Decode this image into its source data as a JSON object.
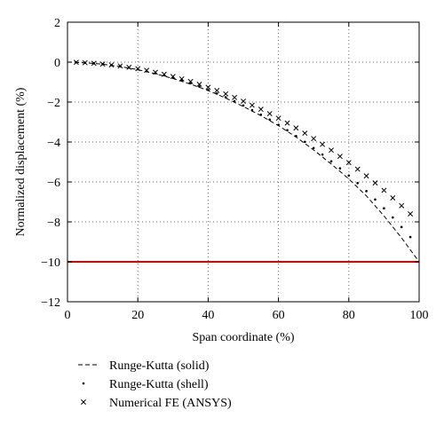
{
  "chart_data": {
    "type": "line",
    "xlabel": "Span coordinate (%)",
    "ylabel": "Normalized displacement (%)",
    "xlim": [
      0,
      100
    ],
    "ylim": [
      -12,
      2
    ],
    "xticks": [
      0,
      20,
      40,
      60,
      80,
      100
    ],
    "yticks": [
      2,
      0,
      -2,
      -4,
      -6,
      -8,
      -10,
      -12
    ],
    "xtick_labels": [
      "0",
      "20",
      "40",
      "60",
      "80",
      "100"
    ],
    "ytick_labels": [
      "2",
      "0",
      "−2",
      "−4",
      "−6",
      "−8",
      "−10",
      "−12"
    ],
    "grid": true,
    "legend_position": "below-left",
    "reference_line": {
      "y": -10,
      "color": "#e00000"
    },
    "series": [
      {
        "name": "Runge-Kutta (solid)",
        "style": "dashed",
        "color": "#000000",
        "x": [
          0,
          5,
          10,
          15,
          20,
          25,
          30,
          35,
          40,
          45,
          50,
          55,
          60,
          65,
          70,
          75,
          80,
          85,
          90,
          95,
          100
        ],
        "y": [
          0,
          -0.03,
          -0.1,
          -0.22,
          -0.38,
          -0.58,
          -0.82,
          -1.1,
          -1.42,
          -1.8,
          -2.22,
          -2.68,
          -3.18,
          -3.75,
          -4.4,
          -5.1,
          -5.85,
          -6.7,
          -7.7,
          -8.8,
          -10.0
        ]
      },
      {
        "name": "Runge-Kutta (shell)",
        "style": "dots",
        "color": "#000000",
        "x": [
          2.5,
          5,
          7.5,
          10,
          12.5,
          15,
          17.5,
          20,
          22.5,
          25,
          27.5,
          30,
          32.5,
          35,
          37.5,
          40,
          42.5,
          45,
          47.5,
          50,
          52.5,
          55,
          57.5,
          60,
          62.5,
          65,
          67.5,
          70,
          72.5,
          75,
          77.5,
          80,
          82.5,
          85,
          87.5,
          90,
          92.5,
          95,
          97.5
        ],
        "y": [
          -0.01,
          -0.03,
          -0.06,
          -0.1,
          -0.15,
          -0.21,
          -0.28,
          -0.36,
          -0.45,
          -0.55,
          -0.66,
          -0.78,
          -0.91,
          -1.06,
          -1.22,
          -1.39,
          -1.57,
          -1.76,
          -1.96,
          -2.17,
          -2.4,
          -2.63,
          -2.88,
          -3.14,
          -3.41,
          -3.7,
          -3.99,
          -4.3,
          -4.63,
          -4.97,
          -5.32,
          -5.68,
          -6.06,
          -6.46,
          -6.88,
          -7.32,
          -7.78,
          -8.26,
          -8.76
        ]
      },
      {
        "name": "Numerical FE (ANSYS)",
        "style": "x-markers",
        "color": "#000000",
        "x": [
          2.5,
          5,
          7.5,
          10,
          12.5,
          15,
          17.5,
          20,
          22.5,
          25,
          27.5,
          30,
          32.5,
          35,
          37.5,
          40,
          42.5,
          45,
          47.5,
          50,
          52.5,
          55,
          57.5,
          60,
          62.5,
          65,
          67.5,
          70,
          72.5,
          75,
          77.5,
          80,
          82.5,
          85,
          87.5,
          90,
          92.5,
          95,
          97.5
        ],
        "y": [
          -0.01,
          -0.03,
          -0.06,
          -0.1,
          -0.14,
          -0.19,
          -0.26,
          -0.33,
          -0.41,
          -0.51,
          -0.61,
          -0.72,
          -0.84,
          -0.97,
          -1.11,
          -1.26,
          -1.42,
          -1.59,
          -1.77,
          -1.96,
          -2.16,
          -2.36,
          -2.58,
          -2.81,
          -3.05,
          -3.3,
          -3.56,
          -3.83,
          -4.12,
          -4.41,
          -4.72,
          -5.03,
          -5.36,
          -5.7,
          -6.05,
          -6.42,
          -6.8,
          -7.19,
          -7.6
        ]
      }
    ]
  }
}
